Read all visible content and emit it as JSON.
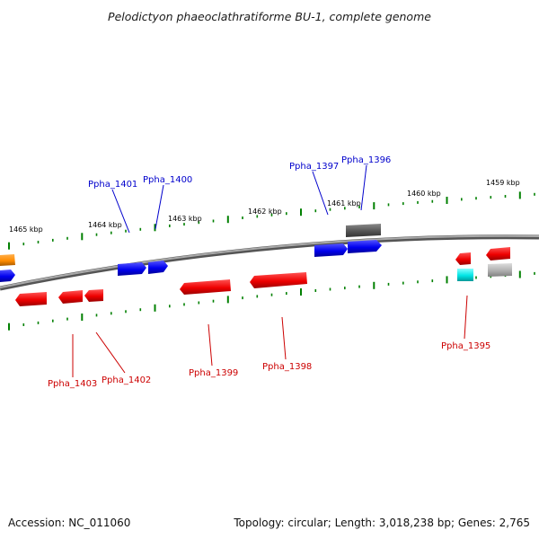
{
  "title": "Pelodictyon phaeoclathratiforme BU-1, complete genome",
  "footer": {
    "accession": "Accession: NC_011060",
    "summary": "Topology: circular; Length: 3,018,238 bp; Genes: 2,765"
  },
  "colors": {
    "forward_label": "#0000cc",
    "reverse_label": "#cc0000",
    "backbone": "#808080",
    "tick": "#008000"
  },
  "ruler_labels": [
    "1465 kbp",
    "1464 kbp",
    "1463 kbp",
    "1462 kbp",
    "1461 kbp",
    "1460 kbp",
    "1459 kbp"
  ],
  "gene_labels": {
    "forward": [
      "Ppha_1401",
      "Ppha_1400",
      "Ppha_1397",
      "Ppha_1396"
    ],
    "reverse": [
      "Ppha_1403",
      "Ppha_1402",
      "Ppha_1399",
      "Ppha_1398",
      "Ppha_1395"
    ]
  },
  "legend": {
    "genes": [
      {
        "color": "orange"
      },
      {
        "color": "blue"
      },
      {
        "color": "blue"
      },
      {
        "color": "blue"
      },
      {
        "color": "blue"
      },
      {
        "color": "blue"
      },
      {
        "color": "gray"
      },
      {
        "color": "red"
      },
      {
        "color": "red"
      },
      {
        "color": "red"
      },
      {
        "color": "red"
      },
      {
        "color": "red"
      },
      {
        "color": "red"
      },
      {
        "color": "cyan"
      },
      {
        "color": "red"
      },
      {
        "color": "gray"
      }
    ]
  }
}
